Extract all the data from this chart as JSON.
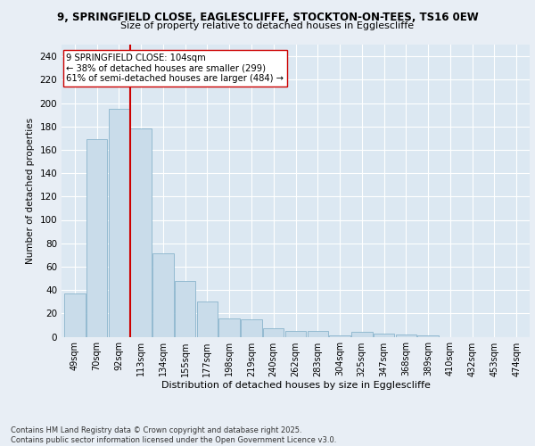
{
  "title_line1": "9, SPRINGFIELD CLOSE, EAGLESCLIFFE, STOCKTON-ON-TEES, TS16 0EW",
  "title_line2": "Size of property relative to detached houses in Egglescliffe",
  "xlabel": "Distribution of detached houses by size in Egglescliffe",
  "ylabel": "Number of detached properties",
  "categories": [
    "49sqm",
    "70sqm",
    "92sqm",
    "113sqm",
    "134sqm",
    "155sqm",
    "177sqm",
    "198sqm",
    "219sqm",
    "240sqm",
    "262sqm",
    "283sqm",
    "304sqm",
    "325sqm",
    "347sqm",
    "368sqm",
    "389sqm",
    "410sqm",
    "432sqm",
    "453sqm",
    "474sqm"
  ],
  "bar_heights": [
    37,
    169,
    195,
    178,
    71,
    48,
    30,
    16,
    15,
    7,
    5,
    5,
    1,
    4,
    3,
    2,
    1,
    0,
    0,
    0,
    0
  ],
  "bar_color": "#c9dcea",
  "bar_edge_color": "#8ab4cc",
  "vline_x": 2.5,
  "vline_color": "#cc0000",
  "annotation_text": "9 SPRINGFIELD CLOSE: 104sqm\n← 38% of detached houses are smaller (299)\n61% of semi-detached houses are larger (484) →",
  "annotation_box_color": "white",
  "annotation_box_edge": "#cc0000",
  "ylim": [
    0,
    250
  ],
  "yticks": [
    0,
    20,
    40,
    60,
    80,
    100,
    120,
    140,
    160,
    180,
    200,
    220,
    240
  ],
  "footer": "Contains HM Land Registry data © Crown copyright and database right 2025.\nContains public sector information licensed under the Open Government Licence v3.0.",
  "bg_color": "#e8eef5",
  "plot_bg_color": "#dce8f2"
}
